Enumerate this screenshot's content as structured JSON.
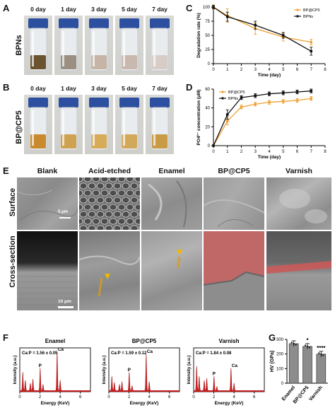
{
  "panels": {
    "A": {
      "letter": "A",
      "row_label": "BPNs",
      "days": [
        "0 day",
        "1 day",
        "3 day",
        "5 day",
        "7 day"
      ],
      "liquid_colors": [
        "#6b5330",
        "#9a8f80",
        "#c6b4a6",
        "#c8b8ad",
        "#d8ccc6"
      ]
    },
    "B": {
      "letter": "B",
      "row_label": "BP@CP5",
      "days": [
        "0 day",
        "1 day",
        "3 day",
        "5 day",
        "7 day"
      ],
      "liquid_colors": [
        "#c98a2e",
        "#cfa252",
        "#d6ac5a",
        "#d2a95a",
        "#c99b47"
      ]
    },
    "E": {
      "letter": "E",
      "columns": [
        "Blank",
        "Acid-etched",
        "Enamel",
        "BP@CP5",
        "Varnish"
      ],
      "rows": [
        "Surface",
        "Cross-section"
      ],
      "scale_surface": "5 μm",
      "scale_cross": "10 μm"
    },
    "F": {
      "letter": "F",
      "titles": [
        "Enamel",
        "BP@CP5",
        "Varnish"
      ],
      "ratios": [
        "Ca:P = 1.56 ± 0.05",
        "Ca:P = 1.59 ± 0.12",
        "Ca:P = 1.84 ± 0.08"
      ],
      "peak_labels": [
        "P",
        "Ca"
      ],
      "xlabel": "Energy (KeV)",
      "ylabel": "Intensity (a.u.)",
      "xticks": [
        "0",
        "2",
        "4",
        "6"
      ]
    },
    "C": {
      "letter": "C"
    },
    "D": {
      "letter": "D"
    },
    "G": {
      "letter": "G"
    }
  },
  "chart_data": [
    {
      "id": "C",
      "type": "line",
      "xlabel": "Time (day)",
      "ylabel": "Degradation rate (%)",
      "xlim": [
        0,
        8
      ],
      "ylim": [
        0,
        100
      ],
      "xticks": [
        0,
        1,
        2,
        3,
        4,
        5,
        6,
        7,
        8
      ],
      "yticks": [
        0,
        25,
        50,
        75,
        100
      ],
      "legend": "top-right",
      "series": [
        {
          "name": "BP@CP5",
          "color": "#f0a030",
          "x": [
            0,
            1,
            3,
            5,
            7
          ],
          "y": [
            100,
            85,
            62,
            47,
            38
          ],
          "err": [
            4,
            12,
            10,
            7,
            5
          ]
        },
        {
          "name": "BPNs",
          "color": "#111111",
          "x": [
            0,
            1,
            3,
            5,
            7
          ],
          "y": [
            100,
            83,
            68,
            50,
            22
          ],
          "err": [
            3,
            8,
            7,
            5,
            7
          ]
        }
      ]
    },
    {
      "id": "D",
      "type": "line",
      "xlabel": "Time (day)",
      "ylabel": "PO4³⁻ concentration (μM)",
      "xlim": [
        0,
        8
      ],
      "ylim": [
        0,
        60
      ],
      "xticks": [
        0,
        1,
        2,
        3,
        4,
        5,
        6,
        7,
        8
      ],
      "yticks": [
        0,
        20,
        40,
        60
      ],
      "legend": "top-left",
      "series": [
        {
          "name": "BP@CP5",
          "color": "#f0a030",
          "x": [
            0,
            1,
            2,
            3,
            4,
            5,
            6,
            7
          ],
          "y": [
            0,
            26,
            41,
            44,
            46,
            47,
            48,
            50
          ],
          "err": [
            0,
            4,
            2,
            2,
            2,
            2,
            2,
            2
          ]
        },
        {
          "name": "BPNs",
          "color": "#111111",
          "x": [
            0,
            1,
            2,
            3,
            4,
            5,
            6,
            7
          ],
          "y": [
            0,
            33,
            51,
            53,
            55,
            56,
            57,
            58
          ],
          "err": [
            0,
            5,
            2,
            2,
            2,
            2,
            2,
            2
          ]
        }
      ]
    },
    {
      "id": "G",
      "type": "bar",
      "categories": [
        "Enamel",
        "BP@CP5",
        "Varnish"
      ],
      "ylabel": "HV (GPa)",
      "values": [
        271,
        252,
        199
      ],
      "ylim": [
        0,
        300
      ],
      "yticks": [
        0,
        100,
        200,
        300
      ],
      "significance": [
        "",
        "*",
        "****"
      ],
      "color": "#8c8c8c"
    }
  ]
}
